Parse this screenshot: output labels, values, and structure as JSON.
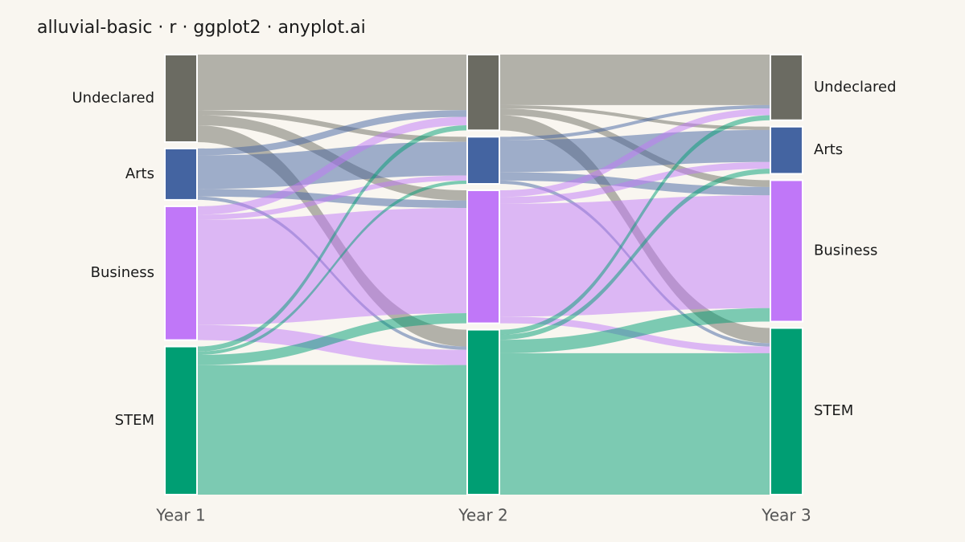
{
  "chart_data": {
    "type": "alluvial",
    "title": "alluvial-basic · r · ggplot2 · anyplot.ai",
    "stages": [
      "Year 1",
      "Year 2",
      "Year 3"
    ],
    "strata": [
      {
        "name": "Undeclared",
        "color": "#6b6b62"
      },
      {
        "name": "Arts",
        "color": "#4464a1"
      },
      {
        "name": "Business",
        "color": "#c077f8"
      },
      {
        "name": "STEM",
        "color": "#009e73"
      }
    ],
    "transitions": [
      [
        [
          66,
          6,
          12,
          20
        ],
        [
          8,
          40,
          9,
          4
        ],
        [
          10,
          6,
          125,
          18
        ],
        [
          6,
          4,
          12,
          154
        ]
      ],
      [
        [
          60,
          4,
          8,
          18
        ],
        [
          4,
          38,
          10,
          4
        ],
        [
          8,
          8,
          134,
          8
        ],
        [
          6,
          6,
          16,
          168
        ]
      ]
    ]
  }
}
